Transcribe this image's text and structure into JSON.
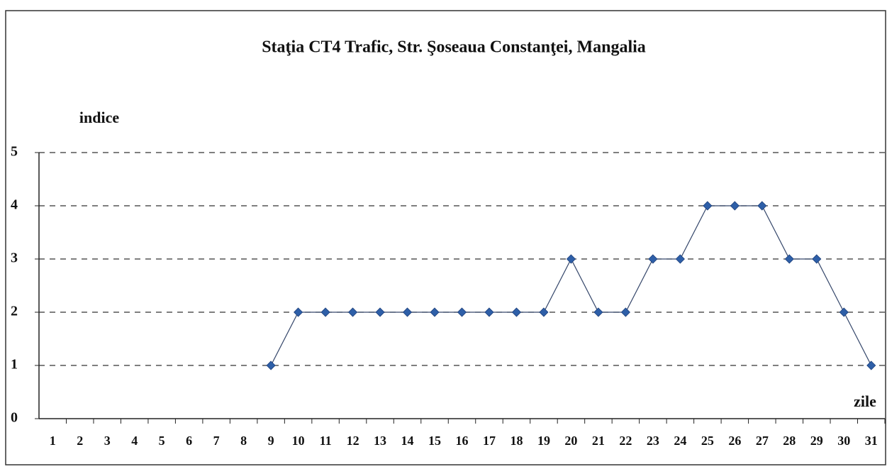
{
  "chart_data": {
    "type": "line",
    "title": "Staţia CT4 Trafic, Str. Şoseaua Constanţei, Mangalia",
    "y_label": "indice",
    "x_label": "zile",
    "categories": [
      1,
      2,
      3,
      4,
      5,
      6,
      7,
      8,
      9,
      10,
      11,
      12,
      13,
      14,
      15,
      16,
      17,
      18,
      19,
      20,
      21,
      22,
      23,
      24,
      25,
      26,
      27,
      28,
      29,
      30,
      31
    ],
    "values": [
      null,
      null,
      null,
      null,
      null,
      null,
      null,
      null,
      1,
      2,
      2,
      2,
      2,
      2,
      2,
      2,
      2,
      2,
      2,
      3,
      2,
      2,
      3,
      3,
      4,
      4,
      4,
      3,
      3,
      2,
      1
    ],
    "color": "#2e5fa8",
    "ylim": [
      0,
      5
    ],
    "yticks": [
      0,
      1,
      2,
      3,
      4,
      5
    ],
    "grid": true
  }
}
